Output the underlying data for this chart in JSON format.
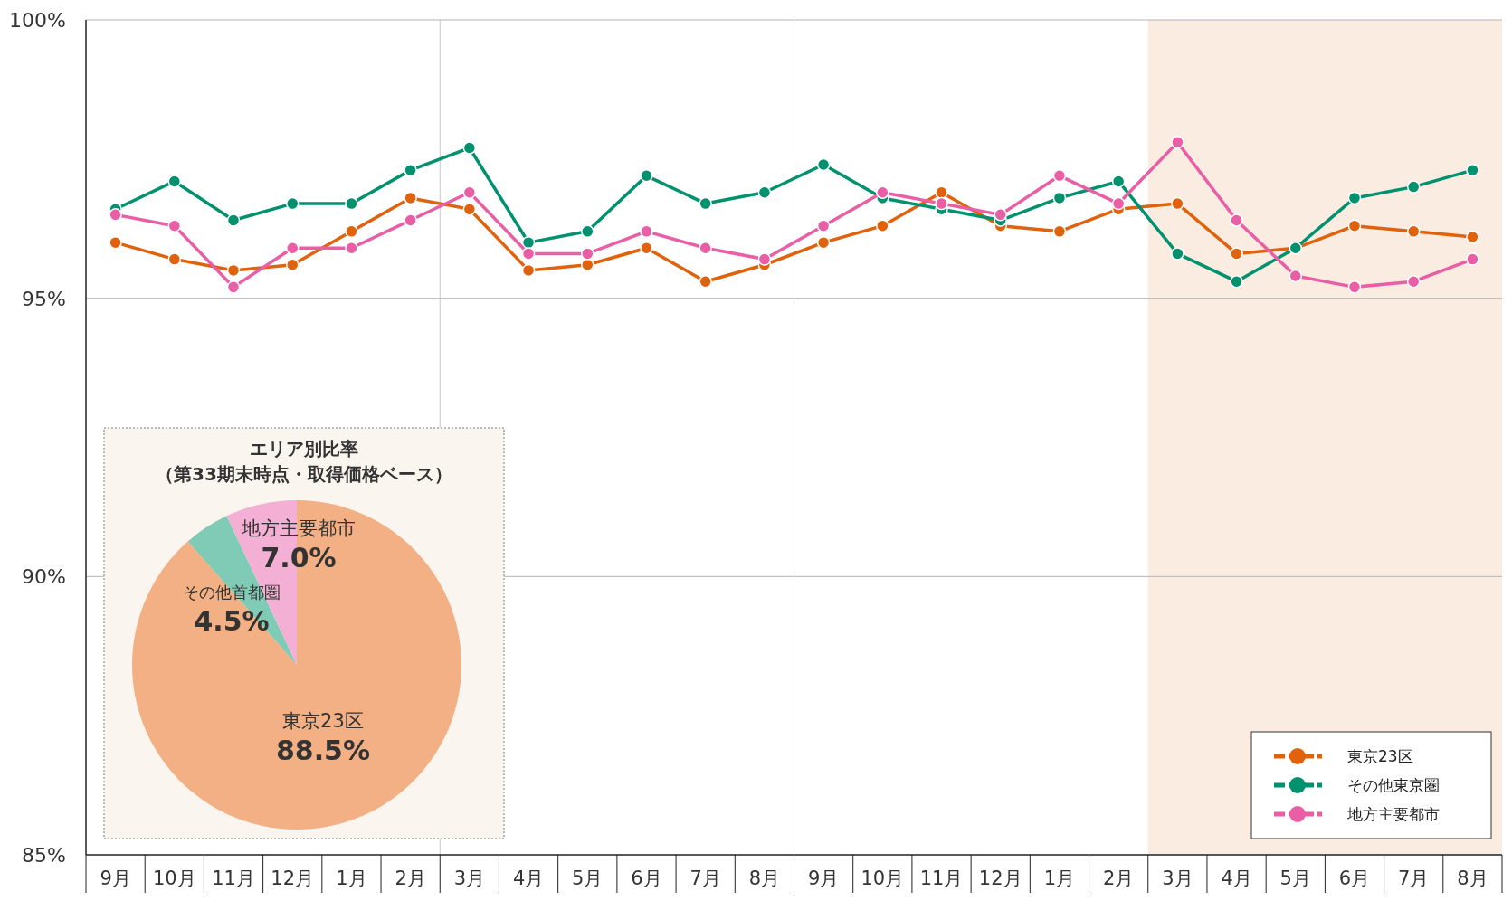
{
  "chart_data": [
    {
      "type": "line",
      "categories": [
        "9月",
        "10月",
        "11月",
        "12月",
        "1月",
        "2月",
        "3月",
        "4月",
        "5月",
        "6月",
        "7月",
        "8月",
        "9月",
        "10月",
        "11月",
        "12月",
        "1月",
        "2月",
        "3月",
        "4月",
        "5月",
        "6月",
        "7月",
        "8月"
      ],
      "series": [
        {
          "name": "東京23区",
          "color": "#e0620d",
          "values": [
            96.0,
            95.7,
            95.5,
            95.6,
            96.2,
            96.8,
            96.6,
            95.5,
            95.6,
            95.9,
            95.3,
            95.6,
            96.0,
            96.3,
            96.9,
            96.3,
            96.2,
            96.6,
            96.7,
            95.8,
            95.9,
            96.3,
            96.2,
            96.1
          ]
        },
        {
          "name": "その他東京圏",
          "color": "#00916e",
          "values": [
            96.6,
            97.1,
            96.4,
            96.7,
            96.7,
            97.3,
            97.7,
            96.0,
            96.2,
            97.2,
            96.7,
            96.9,
            97.4,
            96.8,
            96.6,
            96.4,
            96.8,
            97.1,
            95.8,
            95.3,
            95.9,
            96.8,
            97.0,
            97.3
          ]
        },
        {
          "name": "地方主要都市",
          "color": "#e95ea5",
          "values": [
            96.5,
            96.3,
            95.2,
            95.9,
            95.9,
            96.4,
            96.9,
            95.8,
            95.8,
            96.2,
            95.9,
            95.7,
            96.3,
            96.9,
            96.7,
            96.5,
            97.2,
            96.7,
            97.8,
            96.4,
            95.4,
            95.2,
            95.3,
            95.7
          ]
        }
      ],
      "ylim": [
        85,
        100
      ],
      "yticks": [
        {
          "value": 85,
          "label": "85%"
        },
        {
          "value": 90,
          "label": "90%"
        },
        {
          "value": 95,
          "label": "95%"
        },
        {
          "value": 100,
          "label": "100%"
        }
      ],
      "grid": "y",
      "marker": "circle",
      "line_style": "solid",
      "legend": "bottom right"
    },
    {
      "type": "pie",
      "title": "エリア別比率",
      "subtitle": "（第33期末時点・取得価格ベース）",
      "categories": [
        "東京23区",
        "その他首都圏",
        "地方主要都市"
      ],
      "values": [
        88.5,
        4.5,
        7.0
      ],
      "colors": [
        "#f2b084",
        "#80cbb5",
        "#f4b0d4"
      ],
      "value_labels": [
        "88.5%",
        "4.5%",
        "7.0%"
      ]
    }
  ]
}
